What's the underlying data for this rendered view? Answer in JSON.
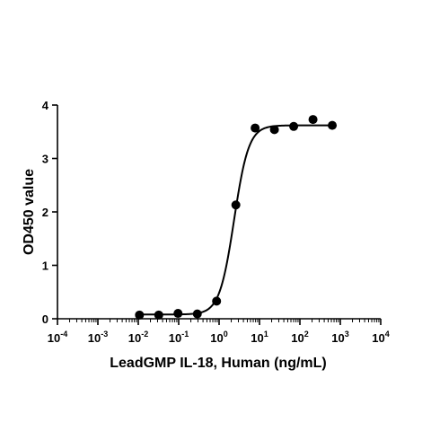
{
  "chart_data": {
    "type": "scatter",
    "title": "",
    "xlabel": "LeadGMP IL-18, Human (ng/mL)",
    "ylabel": "OD450 value",
    "x_scale": "log10",
    "xlim": [
      0.0001,
      10000
    ],
    "ylim": [
      0,
      4
    ],
    "x_ticks": [
      {
        "base": "10",
        "exp": "-4",
        "value": 0.0001
      },
      {
        "base": "10",
        "exp": "-3",
        "value": 0.001
      },
      {
        "base": "10",
        "exp": "-2",
        "value": 0.01
      },
      {
        "base": "10",
        "exp": "-1",
        "value": 0.1
      },
      {
        "base": "10",
        "exp": "0",
        "value": 1
      },
      {
        "base": "10",
        "exp": "1",
        "value": 10
      },
      {
        "base": "10",
        "exp": "2",
        "value": 100
      },
      {
        "base": "10",
        "exp": "3",
        "value": 1000
      },
      {
        "base": "10",
        "exp": "4",
        "value": 10000
      }
    ],
    "y_ticks": [
      "0",
      "1",
      "2",
      "3",
      "4"
    ],
    "grid": false,
    "legend": "none",
    "series": [
      {
        "points": [
          {
            "x": 0.0107,
            "y": 0.07
          },
          {
            "x": 0.0321,
            "y": 0.07
          },
          {
            "x": 0.0963,
            "y": 0.1
          },
          {
            "x": 0.289,
            "y": 0.09
          },
          {
            "x": 0.867,
            "y": 0.33
          },
          {
            "x": 2.6,
            "y": 2.13
          },
          {
            "x": 7.8,
            "y": 3.57
          },
          {
            "x": 23.4,
            "y": 3.54
          },
          {
            "x": 70.2,
            "y": 3.6
          },
          {
            "x": 211,
            "y": 3.73
          },
          {
            "x": 632,
            "y": 3.62
          }
        ],
        "fit_curve": {
          "model": "4PL",
          "bottom": 0.08,
          "top": 3.62,
          "ec50": 2.35,
          "hill": 2.4,
          "x_range": [
            0.0107,
            632
          ]
        }
      }
    ],
    "colors": {
      "points": "#000000",
      "line": "#000000",
      "axes": "#000000"
    }
  }
}
